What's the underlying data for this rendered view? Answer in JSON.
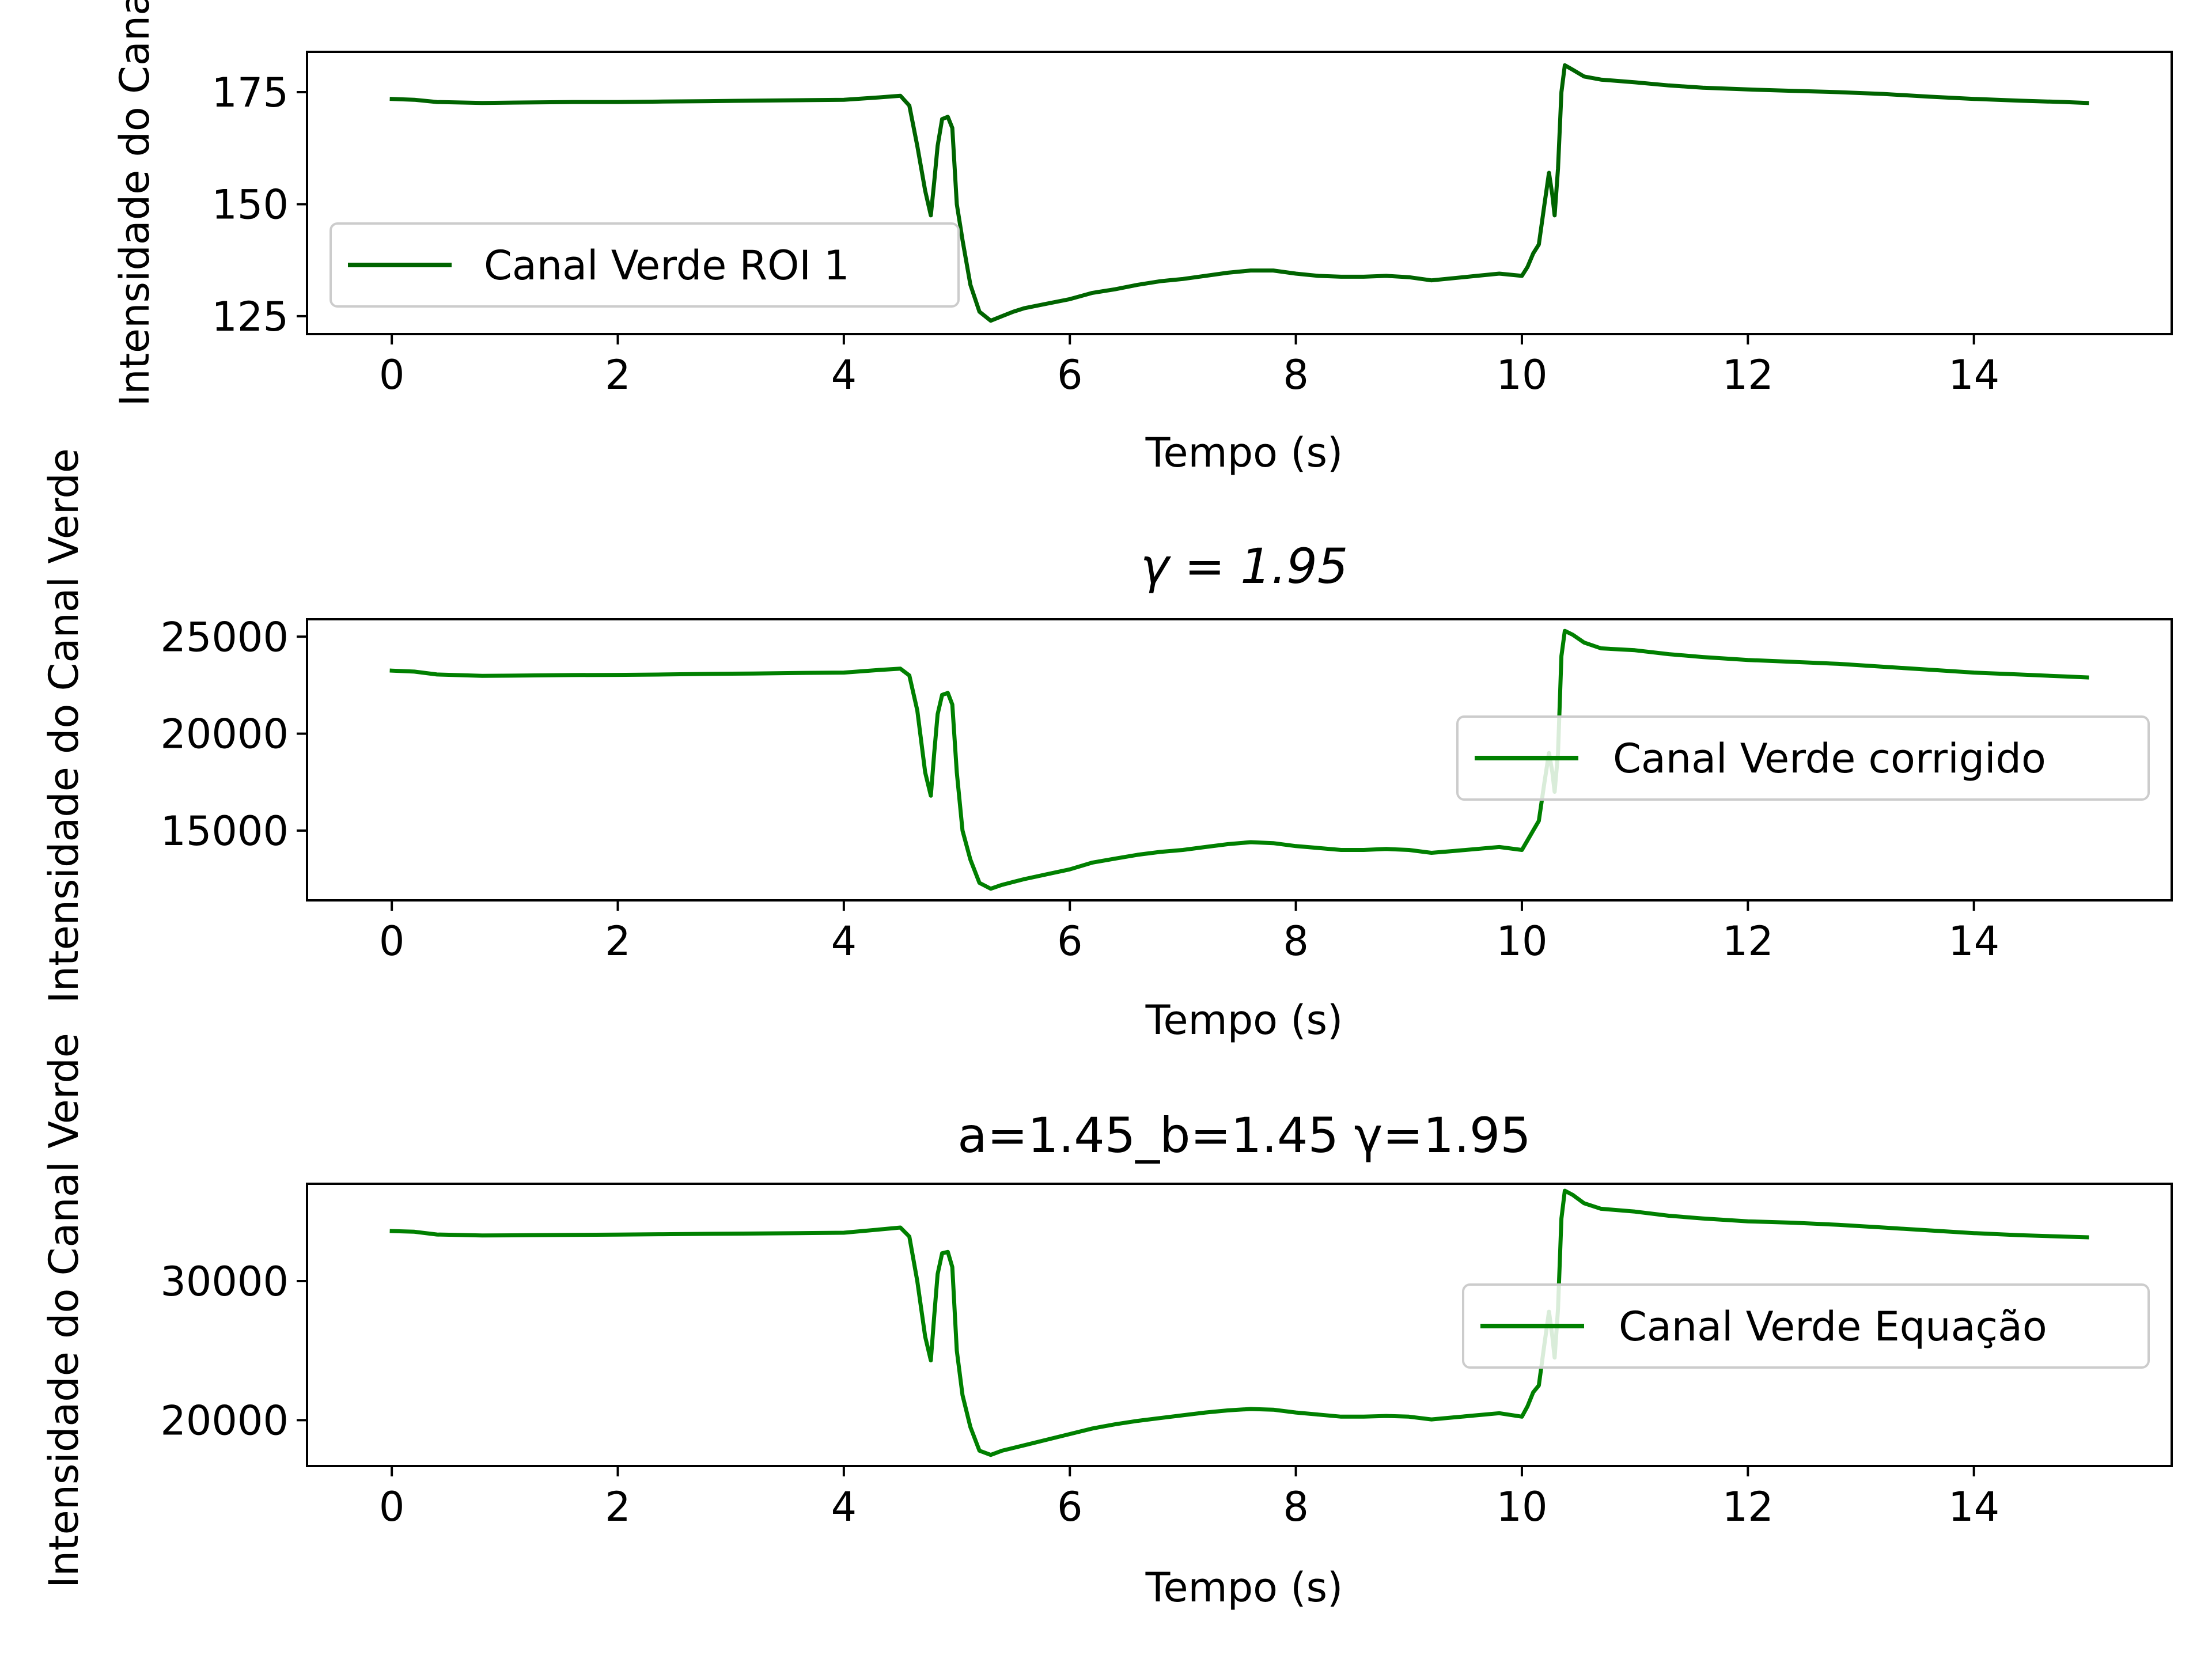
{
  "figure": {
    "background": "#ffffff"
  },
  "chart_data": [
    {
      "type": "line",
      "title": "",
      "xlabel": "Tempo (s)",
      "ylabel": "Intensidade do Canal",
      "xlim": [
        -0.75,
        15.75
      ],
      "ylim": [
        121,
        184
      ],
      "xticks": [
        0,
        2,
        4,
        6,
        8,
        10,
        12,
        14
      ],
      "yticks": [
        125,
        150,
        175
      ],
      "grid": false,
      "legend": "middle-left",
      "series": [
        {
          "name": "Canal Verde ROI 1",
          "color": "#006400",
          "points": [
            [
              0,
              173.5
            ],
            [
              0.2,
              173.3
            ],
            [
              0.4,
              172.8
            ],
            [
              0.8,
              172.6
            ],
            [
              1.2,
              172.7
            ],
            [
              1.6,
              172.8
            ],
            [
              2,
              172.8
            ],
            [
              2.4,
              172.9
            ],
            [
              2.8,
              173.0
            ],
            [
              3.2,
              173.1
            ],
            [
              3.6,
              173.2
            ],
            [
              4.0,
              173.3
            ],
            [
              4.3,
              173.8
            ],
            [
              4.5,
              174.2
            ],
            [
              4.58,
              172.0
            ],
            [
              4.65,
              163.0
            ],
            [
              4.72,
              153.0
            ],
            [
              4.77,
              147.5
            ],
            [
              4.8,
              155.0
            ],
            [
              4.83,
              163.0
            ],
            [
              4.87,
              169.0
            ],
            [
              4.92,
              169.5
            ],
            [
              4.96,
              167.0
            ],
            [
              5.0,
              150.0
            ],
            [
              5.05,
              142.0
            ],
            [
              5.12,
              132.0
            ],
            [
              5.2,
              126.0
            ],
            [
              5.3,
              124.0
            ],
            [
              5.4,
              125.0
            ],
            [
              5.5,
              126.0
            ],
            [
              5.6,
              126.8
            ],
            [
              5.8,
              127.8
            ],
            [
              6.0,
              128.8
            ],
            [
              6.2,
              130.2
            ],
            [
              6.4,
              131.0
            ],
            [
              6.6,
              132.0
            ],
            [
              6.8,
              132.8
            ],
            [
              7.0,
              133.3
            ],
            [
              7.2,
              134.0
            ],
            [
              7.4,
              134.7
            ],
            [
              7.6,
              135.2
            ],
            [
              7.8,
              135.2
            ],
            [
              8.0,
              134.5
            ],
            [
              8.2,
              134.0
            ],
            [
              8.4,
              133.8
            ],
            [
              8.6,
              133.8
            ],
            [
              8.8,
              134.0
            ],
            [
              9.0,
              133.7
            ],
            [
              9.2,
              133.0
            ],
            [
              9.4,
              133.5
            ],
            [
              9.6,
              134.0
            ],
            [
              9.8,
              134.5
            ],
            [
              10.0,
              134.0
            ],
            [
              10.05,
              136.0
            ],
            [
              10.1,
              139.0
            ],
            [
              10.15,
              141.0
            ],
            [
              10.2,
              150.0
            ],
            [
              10.24,
              157.0
            ],
            [
              10.27,
              152.0
            ],
            [
              10.29,
              147.5
            ],
            [
              10.32,
              158.0
            ],
            [
              10.35,
              175.0
            ],
            [
              10.38,
              181.0
            ],
            [
              10.45,
              180.0
            ],
            [
              10.55,
              178.5
            ],
            [
              10.7,
              177.8
            ],
            [
              11.0,
              177.2
            ],
            [
              11.3,
              176.5
            ],
            [
              11.6,
              176.0
            ],
            [
              12.0,
              175.6
            ],
            [
              12.4,
              175.3
            ],
            [
              12.8,
              175.0
            ],
            [
              13.2,
              174.6
            ],
            [
              13.6,
              174.0
            ],
            [
              14.0,
              173.5
            ],
            [
              14.4,
              173.1
            ],
            [
              14.8,
              172.8
            ],
            [
              15.0,
              172.6
            ]
          ]
        }
      ]
    },
    {
      "type": "line",
      "title": "γ = 1.95",
      "xlabel": "Tempo (s)",
      "ylabel": "Intensidade do Canal Verde",
      "xlim": [
        -0.75,
        15.75
      ],
      "ylim": [
        11400,
        25900
      ],
      "xticks": [
        0,
        2,
        4,
        6,
        8,
        10,
        12,
        14
      ],
      "yticks": [
        15000,
        20000,
        25000
      ],
      "grid": false,
      "legend": "middle-right",
      "series": [
        {
          "name": "Canal Verde corrigido",
          "color": "#008000",
          "points": [
            [
              0,
              23250
            ],
            [
              0.2,
              23200
            ],
            [
              0.4,
              23050
            ],
            [
              0.8,
              22980
            ],
            [
              1.2,
              23000
            ],
            [
              1.6,
              23020
            ],
            [
              2,
              23030
            ],
            [
              2.4,
              23050
            ],
            [
              2.8,
              23080
            ],
            [
              3.2,
              23100
            ],
            [
              3.6,
              23130
            ],
            [
              4.0,
              23150
            ],
            [
              4.3,
              23280
            ],
            [
              4.5,
              23350
            ],
            [
              4.58,
              23000
            ],
            [
              4.65,
              21200
            ],
            [
              4.72,
              18000
            ],
            [
              4.77,
              16800
            ],
            [
              4.8,
              19000
            ],
            [
              4.83,
              21000
            ],
            [
              4.87,
              22000
            ],
            [
              4.92,
              22100
            ],
            [
              4.96,
              21500
            ],
            [
              5.0,
              18000
            ],
            [
              5.05,
              15000
            ],
            [
              5.12,
              13500
            ],
            [
              5.2,
              12300
            ],
            [
              5.3,
              12000
            ],
            [
              5.4,
              12200
            ],
            [
              5.5,
              12350
            ],
            [
              5.6,
              12500
            ],
            [
              5.8,
              12750
            ],
            [
              6.0,
              13000
            ],
            [
              6.2,
              13350
            ],
            [
              6.4,
              13550
            ],
            [
              6.6,
              13750
            ],
            [
              6.8,
              13900
            ],
            [
              7.0,
              14000
            ],
            [
              7.2,
              14150
            ],
            [
              7.4,
              14300
            ],
            [
              7.6,
              14400
            ],
            [
              7.8,
              14350
            ],
            [
              8.0,
              14200
            ],
            [
              8.2,
              14100
            ],
            [
              8.4,
              14000
            ],
            [
              8.6,
              14000
            ],
            [
              8.8,
              14050
            ],
            [
              9.0,
              14000
            ],
            [
              9.2,
              13850
            ],
            [
              9.4,
              13950
            ],
            [
              9.6,
              14050
            ],
            [
              9.8,
              14150
            ],
            [
              10.0,
              14000
            ],
            [
              10.05,
              14500
            ],
            [
              10.1,
              15000
            ],
            [
              10.15,
              15500
            ],
            [
              10.2,
              17500
            ],
            [
              10.24,
              19000
            ],
            [
              10.27,
              18000
            ],
            [
              10.29,
              17000
            ],
            [
              10.32,
              19000
            ],
            [
              10.35,
              24000
            ],
            [
              10.38,
              25300
            ],
            [
              10.45,
              25100
            ],
            [
              10.55,
              24700
            ],
            [
              10.7,
              24400
            ],
            [
              11.0,
              24300
            ],
            [
              11.3,
              24100
            ],
            [
              11.6,
              23950
            ],
            [
              12.0,
              23800
            ],
            [
              12.4,
              23700
            ],
            [
              12.8,
              23600
            ],
            [
              13.2,
              23450
            ],
            [
              13.6,
              23300
            ],
            [
              14.0,
              23150
            ],
            [
              14.4,
              23050
            ],
            [
              14.8,
              22950
            ],
            [
              15.0,
              22900
            ]
          ]
        }
      ]
    },
    {
      "type": "line",
      "title": "a=1.45_b=1.45 γ=1.95",
      "xlabel": "Tempo (s)",
      "ylabel": "Intensidade do Canal Verde",
      "xlim": [
        -0.75,
        15.75
      ],
      "ylim": [
        16700,
        37000
      ],
      "xticks": [
        0,
        2,
        4,
        6,
        8,
        10,
        12,
        14
      ],
      "yticks": [
        20000,
        30000
      ],
      "grid": false,
      "legend": "middle-right",
      "series": [
        {
          "name": "Canal Verde Equação",
          "color": "#008000",
          "points": [
            [
              0,
              33600
            ],
            [
              0.2,
              33550
            ],
            [
              0.4,
              33350
            ],
            [
              0.8,
              33280
            ],
            [
              1.2,
              33300
            ],
            [
              1.6,
              33320
            ],
            [
              2,
              33340
            ],
            [
              2.4,
              33370
            ],
            [
              2.8,
              33400
            ],
            [
              3.2,
              33420
            ],
            [
              3.6,
              33450
            ],
            [
              4.0,
              33480
            ],
            [
              4.3,
              33700
            ],
            [
              4.5,
              33850
            ],
            [
              4.58,
              33200
            ],
            [
              4.65,
              30000
            ],
            [
              4.72,
              26000
            ],
            [
              4.77,
              24300
            ],
            [
              4.8,
              27500
            ],
            [
              4.83,
              30500
            ],
            [
              4.87,
              32000
            ],
            [
              4.92,
              32100
            ],
            [
              4.96,
              31000
            ],
            [
              5.0,
              25000
            ],
            [
              5.05,
              21800
            ],
            [
              5.12,
              19500
            ],
            [
              5.2,
              17800
            ],
            [
              5.3,
              17500
            ],
            [
              5.4,
              17800
            ],
            [
              5.5,
              18000
            ],
            [
              5.6,
              18200
            ],
            [
              5.8,
              18600
            ],
            [
              6.0,
              19000
            ],
            [
              6.2,
              19400
            ],
            [
              6.4,
              19700
            ],
            [
              6.6,
              19950
            ],
            [
              6.8,
              20150
            ],
            [
              7.0,
              20350
            ],
            [
              7.2,
              20550
            ],
            [
              7.4,
              20700
            ],
            [
              7.6,
              20800
            ],
            [
              7.8,
              20750
            ],
            [
              8.0,
              20550
            ],
            [
              8.2,
              20400
            ],
            [
              8.4,
              20250
            ],
            [
              8.6,
              20250
            ],
            [
              8.8,
              20300
            ],
            [
              9.0,
              20250
            ],
            [
              9.2,
              20050
            ],
            [
              9.4,
              20200
            ],
            [
              9.6,
              20350
            ],
            [
              9.8,
              20500
            ],
            [
              10.0,
              20250
            ],
            [
              10.05,
              21000
            ],
            [
              10.1,
              22000
            ],
            [
              10.15,
              22500
            ],
            [
              10.2,
              25500
            ],
            [
              10.24,
              27800
            ],
            [
              10.27,
              26000
            ],
            [
              10.29,
              24500
            ],
            [
              10.32,
              28000
            ],
            [
              10.35,
              34500
            ],
            [
              10.38,
              36500
            ],
            [
              10.45,
              36200
            ],
            [
              10.55,
              35600
            ],
            [
              10.7,
              35200
            ],
            [
              11.0,
              35000
            ],
            [
              11.3,
              34700
            ],
            [
              11.6,
              34500
            ],
            [
              12.0,
              34300
            ],
            [
              12.4,
              34200
            ],
            [
              12.8,
              34050
            ],
            [
              13.2,
              33850
            ],
            [
              13.6,
              33650
            ],
            [
              14.0,
              33450
            ],
            [
              14.4,
              33300
            ],
            [
              14.8,
              33200
            ],
            [
              15.0,
              33150
            ]
          ]
        }
      ]
    }
  ]
}
